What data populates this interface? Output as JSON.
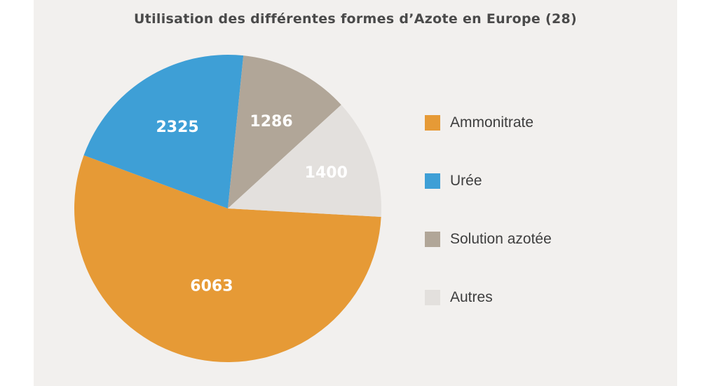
{
  "chart_data": {
    "type": "pie",
    "title": "Utilisation des différentes formes d’Azote en Europe (28)",
    "categories": [
      "Ammonitrate",
      "Urée",
      "Solution azotée",
      "Autres"
    ],
    "values": [
      6063,
      2325,
      1286,
      1400
    ],
    "value_labels": [
      "6063",
      "2325",
      "1286",
      "1400"
    ],
    "colors": [
      "#e69a36",
      "#3e9fd6",
      "#b1a698",
      "#e3e0dd"
    ],
    "label_colors": [
      "#ffffff",
      "#ffffff",
      "#ffffff",
      "#ffffff"
    ],
    "legend_position": "right",
    "start_category": "Ammonitrate",
    "direction": "counterclockwise"
  }
}
